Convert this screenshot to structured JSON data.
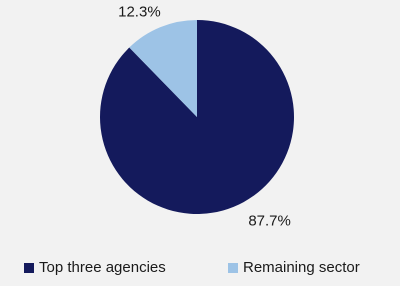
{
  "chart_data": {
    "type": "pie",
    "categories": [
      "Top three agencies",
      "Remaining sector"
    ],
    "values": [
      87.7,
      12.3
    ],
    "value_labels": [
      "87.7%",
      "12.3%"
    ],
    "colors": [
      "#141a5c",
      "#9dc3e6"
    ],
    "legend": "bottom"
  }
}
